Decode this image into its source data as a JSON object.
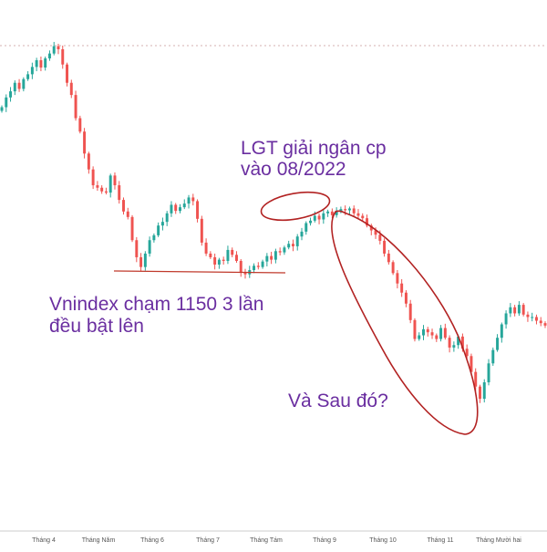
{
  "chart_data": {
    "type": "candlestick",
    "title": "",
    "xlabel": "",
    "ylabel": "",
    "x_tick_labels": [
      "Tháng 4",
      "Tháng Năm",
      "Tháng 6",
      "Tháng 7",
      "Tháng Tám",
      "Tháng 9",
      "Tháng 10",
      "Tháng 11",
      "Tháng Mười hai"
    ],
    "ylim": [
      850,
      1550
    ],
    "grid": false,
    "legend": "none",
    "colors": {
      "up": "#26a69a",
      "down": "#ef5350",
      "annotation_text": "#6a2ea0",
      "annotation_line": "#b22222",
      "reference_line": "#c0392b"
    },
    "support_level": 1150,
    "annotations": [
      {
        "id": "lgt",
        "lines": [
          "LGT giải ngân cp",
          "vào 08/2022"
        ]
      },
      {
        "id": "vnindex",
        "lines": [
          "Vnindex chạm 1150 3 lần",
          "đều bật lên"
        ]
      },
      {
        "id": "after",
        "lines": [
          "Và Sau đó?"
        ]
      }
    ],
    "closes": [
      1420,
      1436,
      1446,
      1460,
      1450,
      1466,
      1474,
      1486,
      1497,
      1485,
      1500,
      1508,
      1520,
      1515,
      1490,
      1460,
      1440,
      1402,
      1380,
      1344,
      1318,
      1292,
      1288,
      1282,
      1280,
      1308,
      1292,
      1268,
      1249,
      1240,
      1202,
      1174,
      1158,
      1180,
      1202,
      1210,
      1226,
      1232,
      1246,
      1260,
      1250,
      1256,
      1262,
      1272,
      1266,
      1237,
      1198,
      1180,
      1174,
      1162,
      1170,
      1168,
      1186,
      1178,
      1168,
      1150,
      1146,
      1153,
      1160,
      1158,
      1167,
      1176,
      1170,
      1184,
      1182,
      1190,
      1196,
      1192,
      1208,
      1216,
      1230,
      1234,
      1242,
      1236,
      1246,
      1249,
      1243,
      1249,
      1253,
      1251,
      1254,
      1246,
      1242,
      1238,
      1226,
      1218,
      1211,
      1201,
      1180,
      1166,
      1148,
      1131,
      1116,
      1098,
      1071,
      1040,
      1046,
      1056,
      1051,
      1046,
      1040,
      1058,
      1042,
      1026,
      1030,
      1044,
      1024,
      1012,
      986,
      962,
      942,
      969,
      1000,
      1022,
      1042,
      1064,
      1082,
      1092,
      1082,
      1096,
      1080,
      1076,
      1076,
      1070,
      1066,
      1062
    ]
  }
}
